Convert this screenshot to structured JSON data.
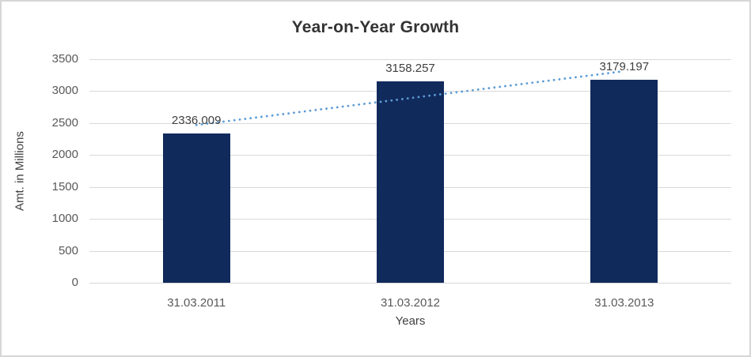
{
  "chart_data": {
    "type": "bar",
    "title": "Year-on-Year Growth",
    "xlabel": "Years",
    "ylabel": "Amt. in Millions",
    "categories": [
      "31.03.2011",
      "31.03.2012",
      "31.03.2013"
    ],
    "values": [
      2336.009,
      3158.257,
      3179.197
    ],
    "data_labels": [
      "2336.009",
      "3158.257",
      "3179.197"
    ],
    "ytick_labels": [
      "0",
      "500",
      "1000",
      "1500",
      "2000",
      "2500",
      "3000",
      "3500"
    ],
    "yticks": [
      0,
      500,
      1000,
      1500,
      2000,
      2500,
      3000,
      3500
    ],
    "ylim": [
      0,
      3500
    ],
    "grid": true,
    "legend_position": "none",
    "trendline": {
      "type": "linear",
      "style": "dotted"
    },
    "colors": {
      "bar": "#112A5C",
      "trendline": "#5B9BD5",
      "gridline": "#D9D9D9",
      "axis_line": "#D9D9D9",
      "title_text": "#333333",
      "tick_text": "#595959",
      "label_text": "#404040",
      "frame_border": "#D6D6D6",
      "background": "#FFFFFF"
    }
  }
}
